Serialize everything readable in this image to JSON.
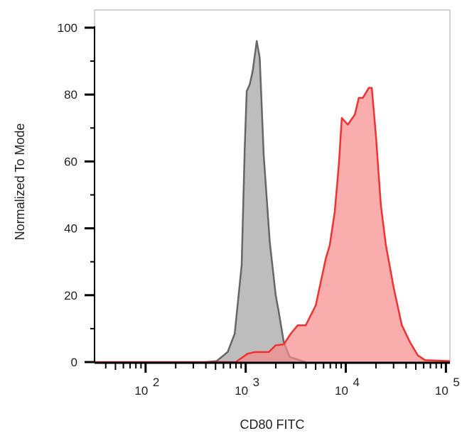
{
  "chart_data": {
    "type": "area",
    "title": "",
    "xlabel": "CD80 FITC",
    "ylabel": "Normalized To Mode",
    "x_scale": "log",
    "xlim_log10": [
      1.49,
      5.04
    ],
    "ylim": [
      0,
      100
    ],
    "grid": false,
    "x_ticks": [
      {
        "base": "10",
        "exp": "2",
        "value": 100
      },
      {
        "base": "10",
        "exp": "3",
        "value": 1000
      },
      {
        "base": "10",
        "exp": "4",
        "value": 10000
      },
      {
        "base": "10",
        "exp": "5",
        "value": 100000
      }
    ],
    "y_ticks": [
      {
        "label": "0",
        "value": 0
      },
      {
        "label": "20",
        "value": 20
      },
      {
        "label": "40",
        "value": 40
      },
      {
        "label": "60",
        "value": 60
      },
      {
        "label": "80",
        "value": 80
      },
      {
        "label": "100",
        "value": 100
      }
    ],
    "series": [
      {
        "color": "#666666",
        "fill": "#bdbdbd",
        "log10_x": [
          2.6,
          2.71,
          2.82,
          2.89,
          2.96,
          2.99,
          3.01,
          3.04,
          3.07,
          3.11,
          3.14,
          3.18,
          3.24,
          3.3,
          3.33,
          3.38,
          3.44,
          3.6
        ],
        "y": [
          0,
          0.3,
          3,
          8.5,
          29,
          64,
          81,
          83,
          87,
          96,
          91,
          62,
          36,
          20,
          15,
          6,
          1.5,
          0
        ]
      },
      {
        "color": "#f03232",
        "fill": "#f88a8a",
        "log10_x": [
          1.49,
          2.9,
          3.02,
          3.09,
          3.23,
          3.3,
          3.38,
          3.45,
          3.52,
          3.6,
          3.7,
          3.8,
          3.84,
          3.89,
          3.93,
          3.96,
          4.02,
          4.09,
          4.13,
          4.17,
          4.23,
          4.26,
          4.3,
          4.35,
          4.4,
          4.48,
          4.56,
          4.64,
          4.72,
          4.79,
          5.04
        ],
        "y": [
          0,
          0,
          2.5,
          3,
          3,
          5,
          5.3,
          8.5,
          11,
          11,
          17,
          31,
          35,
          45,
          59,
          73,
          71,
          74,
          79,
          79,
          82,
          82,
          68,
          47,
          35,
          22,
          11,
          6,
          2,
          0.6,
          0.3
        ]
      }
    ]
  }
}
